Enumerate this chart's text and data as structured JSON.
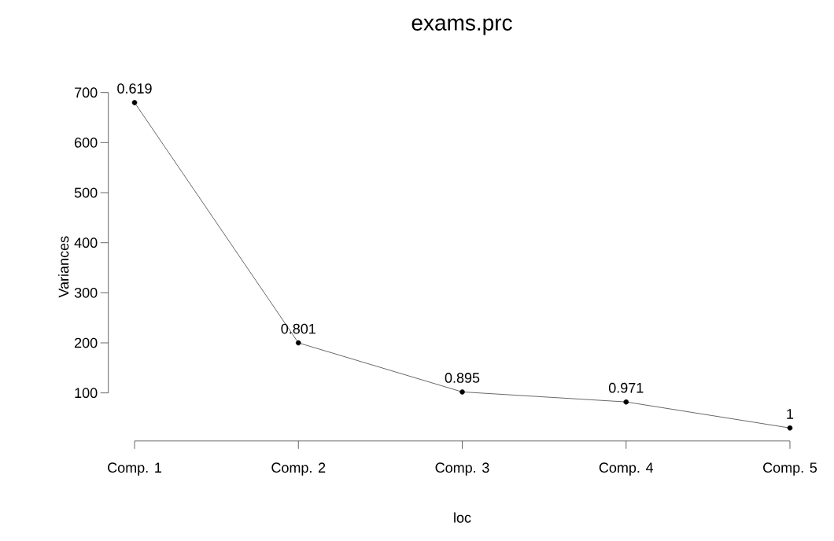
{
  "chart_data": {
    "type": "line",
    "title": "exams.prc",
    "xlabel": "loc",
    "ylabel": "Variances",
    "categories": [
      "Comp. 1",
      "Comp. 2",
      "Comp. 3",
      "Comp. 4",
      "Comp. 5"
    ],
    "values": [
      680,
      200,
      102,
      82,
      30
    ],
    "annotations": [
      {
        "text": "0.619",
        "x": "Comp. 1",
        "y": 680
      },
      {
        "text": "0.801",
        "x": "Comp. 2",
        "y": 200
      },
      {
        "text": "0.895",
        "x": "Comp. 3",
        "y": 102
      },
      {
        "text": "0.971",
        "x": "Comp. 4",
        "y": 82
      },
      {
        "text": "1",
        "x": "Comp. 5",
        "y": 30
      }
    ],
    "color": "#000000",
    "marker": "circle",
    "line_style": "solid",
    "ylim": [
      4,
      700
    ],
    "yticks": [
      100,
      200,
      300,
      400,
      500,
      600,
      700
    ]
  }
}
